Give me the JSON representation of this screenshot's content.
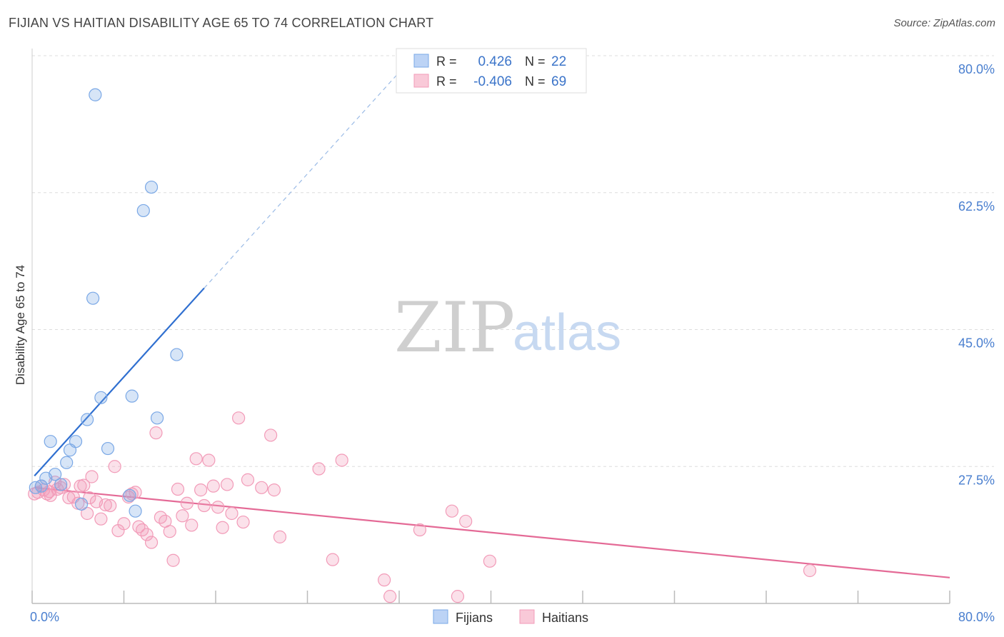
{
  "title": "FIJIAN VS HAITIAN DISABILITY AGE 65 TO 74 CORRELATION CHART",
  "source": "Source: ZipAtlas.com",
  "watermark": {
    "zip": "ZIP",
    "atlas": "atlas"
  },
  "colors": {
    "fijian": "#7aa8e6",
    "fijian_line": "#2f6fd0",
    "haitian": "#f29bb8",
    "haitian_line": "#e46a96",
    "tick": "#4a7fcf"
  },
  "chart_data": {
    "type": "scatter",
    "title": "FIJIAN VS HAITIAN DISABILITY AGE 65 TO 74 CORRELATION CHART",
    "xlabel": "",
    "ylabel": "Disability Age 65 to 74",
    "xlim": [
      0,
      80
    ],
    "ylim": [
      10,
      80
    ],
    "x_tick_labels": [
      {
        "value": 0,
        "label": "0.0%"
      },
      {
        "value": 80,
        "label": "80.0%"
      }
    ],
    "y_tick_labels": [
      {
        "value": 27.5,
        "label": "27.5%"
      },
      {
        "value": 45.0,
        "label": "45.0%"
      },
      {
        "value": 62.5,
        "label": "62.5%"
      },
      {
        "value": 80.0,
        "label": "80.0%"
      }
    ],
    "legend": {
      "items": [
        {
          "name": "Fijians",
          "r_label": "R =",
          "r": "0.426",
          "n_label": "N =",
          "n": "22"
        },
        {
          "name": "Haitians",
          "r_label": "R =",
          "r": "-0.406",
          "n_label": "N =",
          "n": "69"
        }
      ]
    },
    "series": [
      {
        "name": "Fijians",
        "points": [
          [
            0.3,
            24.8
          ],
          [
            0.8,
            25.0
          ],
          [
            1.2,
            26.0
          ],
          [
            1.6,
            30.7
          ],
          [
            2.0,
            26.5
          ],
          [
            2.5,
            25.2
          ],
          [
            3.0,
            28.0
          ],
          [
            3.3,
            29.6
          ],
          [
            3.8,
            30.7
          ],
          [
            4.3,
            22.7
          ],
          [
            4.8,
            33.5
          ],
          [
            5.3,
            49.0
          ],
          [
            5.5,
            75.0
          ],
          [
            6.0,
            36.3
          ],
          [
            6.6,
            29.8
          ],
          [
            8.5,
            23.8
          ],
          [
            8.7,
            36.5
          ],
          [
            9.0,
            21.8
          ],
          [
            9.7,
            60.2
          ],
          [
            10.4,
            63.2
          ],
          [
            10.9,
            33.7
          ],
          [
            12.6,
            41.8
          ]
        ],
        "trend": {
          "x": [
            0.2,
            15.0
          ],
          "y": [
            26.3,
            50.3
          ]
        },
        "trend_extension": {
          "x": [
            15.0,
            33.0
          ],
          "y": [
            50.3,
            79.5
          ]
        }
      },
      {
        "name": "Haitians",
        "points": [
          [
            0.2,
            24.0
          ],
          [
            0.5,
            24.2
          ],
          [
            0.8,
            25.0
          ],
          [
            1.0,
            24.5
          ],
          [
            1.3,
            24.0
          ],
          [
            1.6,
            23.8
          ],
          [
            2.0,
            25.5
          ],
          [
            2.5,
            24.8
          ],
          [
            2.8,
            25.2
          ],
          [
            3.2,
            23.5
          ],
          [
            3.6,
            23.6
          ],
          [
            4.0,
            22.8
          ],
          [
            4.2,
            25.0
          ],
          [
            4.5,
            25.1
          ],
          [
            4.8,
            21.5
          ],
          [
            5.0,
            23.5
          ],
          [
            5.2,
            26.2
          ],
          [
            5.6,
            23.0
          ],
          [
            6.0,
            20.8
          ],
          [
            6.4,
            22.6
          ],
          [
            6.8,
            22.5
          ],
          [
            7.2,
            27.5
          ],
          [
            7.5,
            19.3
          ],
          [
            8.0,
            20.2
          ],
          [
            8.4,
            23.6
          ],
          [
            8.7,
            24.0
          ],
          [
            9.0,
            24.2
          ],
          [
            9.3,
            19.8
          ],
          [
            9.6,
            19.4
          ],
          [
            10.0,
            18.8
          ],
          [
            10.4,
            17.8
          ],
          [
            10.8,
            31.8
          ],
          [
            11.2,
            21.0
          ],
          [
            11.6,
            20.5
          ],
          [
            12.0,
            19.2
          ],
          [
            12.3,
            15.5
          ],
          [
            12.7,
            24.6
          ],
          [
            13.1,
            21.2
          ],
          [
            13.5,
            22.8
          ],
          [
            13.9,
            20.0
          ],
          [
            14.3,
            28.5
          ],
          [
            14.7,
            24.5
          ],
          [
            15.0,
            22.5
          ],
          [
            15.4,
            28.3
          ],
          [
            15.8,
            25.0
          ],
          [
            16.2,
            22.3
          ],
          [
            16.6,
            19.7
          ],
          [
            17.0,
            25.2
          ],
          [
            17.4,
            21.5
          ],
          [
            18.0,
            33.7
          ],
          [
            18.4,
            20.4
          ],
          [
            18.8,
            25.8
          ],
          [
            20.0,
            24.8
          ],
          [
            20.8,
            31.5
          ],
          [
            21.1,
            24.5
          ],
          [
            21.6,
            18.5
          ],
          [
            25.0,
            27.2
          ],
          [
            26.2,
            15.6
          ],
          [
            27.0,
            28.3
          ],
          [
            30.7,
            13.0
          ],
          [
            31.2,
            10.9
          ],
          [
            33.8,
            19.4
          ],
          [
            36.6,
            21.8
          ],
          [
            37.8,
            20.5
          ],
          [
            37.1,
            10.9
          ],
          [
            39.9,
            15.4
          ],
          [
            67.8,
            14.2
          ],
          [
            1.5,
            24.3
          ],
          [
            2.2,
            24.6
          ]
        ],
        "trend": {
          "x": [
            0.2,
            80.0
          ],
          "y": [
            24.8,
            13.3
          ]
        }
      }
    ]
  }
}
